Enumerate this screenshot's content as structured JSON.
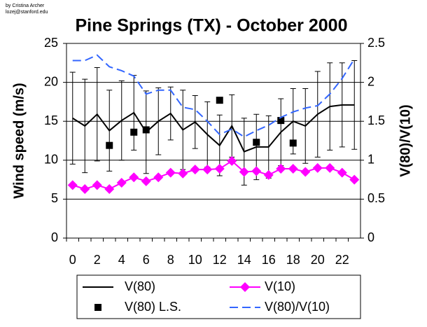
{
  "chart_data": {
    "type": "line",
    "title": "Pine Springs (TX) - October 2000",
    "annotations": [
      "by Cristina Archer",
      "lozej@stanford.edu"
    ],
    "y_label": "Wind speed (m/s)",
    "y2_label": "V(80)/V(10)",
    "categories": [
      0,
      null,
      2,
      null,
      4,
      null,
      6,
      null,
      8,
      null,
      10,
      null,
      12,
      null,
      14,
      null,
      16,
      null,
      18,
      null,
      20,
      null,
      22,
      null
    ],
    "ylim": [
      0,
      25
    ],
    "yticks": [
      0,
      5,
      10,
      15,
      20,
      25
    ],
    "y2lim": [
      0,
      2.5
    ],
    "y2ticks": [
      0,
      0.5,
      1,
      1.5,
      2,
      2.5
    ],
    "grid": true,
    "legend": "bottom",
    "series": [
      {
        "name": "V(80)",
        "type": "line",
        "color": "#000000",
        "values": [
          15.4,
          14.4,
          15.9,
          13.8,
          15.1,
          16.1,
          13.6,
          15.0,
          16.0,
          13.9,
          14.9,
          13.3,
          11.9,
          14.4,
          11.1,
          11.7,
          11.7,
          13.6,
          15.0,
          14.4,
          15.9,
          16.9,
          17.1,
          17.1
        ],
        "errors": [
          5.9,
          6.0,
          6.0,
          5.2,
          5.1,
          4.8,
          5.3,
          4.3,
          3.4,
          5.1,
          3.4,
          4.2,
          3.9,
          4.0,
          4.3,
          4.2,
          4.0,
          4.3,
          4.2,
          4.8,
          5.5,
          5.6,
          5.4,
          5.7
        ]
      },
      {
        "name": "V(10)",
        "type": "line-diamond",
        "color": "#ff00ff",
        "values": [
          6.8,
          6.3,
          6.8,
          6.3,
          7.1,
          7.8,
          7.3,
          7.8,
          8.4,
          8.3,
          8.8,
          8.8,
          8.9,
          9.9,
          8.5,
          8.6,
          8.1,
          8.9,
          8.9,
          8.5,
          9.0,
          9.0,
          8.4,
          7.5
        ]
      },
      {
        "name": "V(80) L.S.",
        "type": "square",
        "color": "#000000",
        "values": [
          null,
          null,
          null,
          11.9,
          null,
          13.6,
          13.9,
          null,
          null,
          null,
          null,
          null,
          17.7,
          null,
          null,
          12.3,
          null,
          15.1,
          12.2,
          null,
          null,
          null,
          null,
          null
        ]
      },
      {
        "name": "V(80)/V(10)",
        "type": "dashed",
        "color": "#3366ff",
        "axis": "y2",
        "values": [
          2.28,
          2.28,
          2.35,
          2.2,
          2.15,
          2.08,
          1.85,
          1.9,
          1.9,
          1.68,
          1.65,
          1.5,
          1.33,
          1.4,
          1.3,
          1.38,
          1.45,
          1.55,
          1.62,
          1.67,
          1.7,
          1.85,
          2.05,
          2.3
        ]
      }
    ]
  }
}
